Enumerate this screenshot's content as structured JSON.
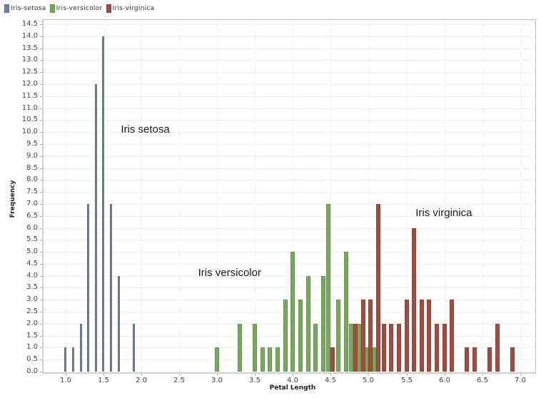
{
  "chart_data": {
    "type": "bar",
    "title": "",
    "xlabel": "Petal Length",
    "ylabel": "Frequency",
    "xlim": [
      0.7,
      7.2
    ],
    "ylim": [
      0,
      14.68
    ],
    "grid": true,
    "legend_position": "top-left",
    "x_ticks": [
      "1.0",
      "1.5",
      "2.0",
      "2.5",
      "3.0",
      "3.5",
      "4.0",
      "4.5",
      "5.0",
      "5.5",
      "6.0",
      "6.5",
      "7.0"
    ],
    "y_ticks": [
      "0.0",
      "0.5",
      "1.0",
      "1.5",
      "2.0",
      "2.5",
      "3.0",
      "3.5",
      "4.0",
      "4.5",
      "5.0",
      "5.5",
      "6.0",
      "6.5",
      "7.0",
      "7.5",
      "8.0",
      "8.5",
      "9.0",
      "9.5",
      "10.0",
      "10.5",
      "11.0",
      "11.5",
      "12.0",
      "12.5",
      "13.0",
      "13.5",
      "14.0",
      "14.5"
    ],
    "series": [
      {
        "name": "Iris-setosa",
        "color": "#6f82a2",
        "points": [
          {
            "x": 1.0,
            "y": 1
          },
          {
            "x": 1.1,
            "y": 1
          },
          {
            "x": 1.2,
            "y": 2
          },
          {
            "x": 1.3,
            "y": 7
          },
          {
            "x": 1.4,
            "y": 12
          },
          {
            "x": 1.5,
            "y": 14
          },
          {
            "x": 1.6,
            "y": 7
          },
          {
            "x": 1.7,
            "y": 4
          },
          {
            "x": 1.9,
            "y": 2
          }
        ]
      },
      {
        "name": "Iris-versicolor",
        "color": "#77a95a",
        "points": [
          {
            "x": 3.0,
            "y": 1
          },
          {
            "x": 3.3,
            "y": 2
          },
          {
            "x": 3.5,
            "y": 2
          },
          {
            "x": 3.6,
            "y": 1
          },
          {
            "x": 3.7,
            "y": 1
          },
          {
            "x": 3.8,
            "y": 1
          },
          {
            "x": 3.9,
            "y": 3
          },
          {
            "x": 4.0,
            "y": 5
          },
          {
            "x": 4.1,
            "y": 3
          },
          {
            "x": 4.2,
            "y": 4
          },
          {
            "x": 4.3,
            "y": 2
          },
          {
            "x": 4.4,
            "y": 4
          },
          {
            "x": 4.5,
            "y": 7
          },
          {
            "x": 4.6,
            "y": 3
          },
          {
            "x": 4.7,
            "y": 5
          },
          {
            "x": 4.8,
            "y": 2
          },
          {
            "x": 4.9,
            "y": 2
          },
          {
            "x": 5.0,
            "y": 1
          },
          {
            "x": 5.1,
            "y": 1
          }
        ]
      },
      {
        "name": "Iris-virginica",
        "color": "#a54a3e",
        "points": [
          {
            "x": 4.5,
            "y": 1
          },
          {
            "x": 4.8,
            "y": 2
          },
          {
            "x": 4.9,
            "y": 3
          },
          {
            "x": 5.0,
            "y": 3
          },
          {
            "x": 5.1,
            "y": 7
          },
          {
            "x": 5.2,
            "y": 2
          },
          {
            "x": 5.3,
            "y": 2
          },
          {
            "x": 5.4,
            "y": 2
          },
          {
            "x": 5.5,
            "y": 3
          },
          {
            "x": 5.6,
            "y": 6
          },
          {
            "x": 5.7,
            "y": 3
          },
          {
            "x": 5.8,
            "y": 3
          },
          {
            "x": 5.9,
            "y": 2
          },
          {
            "x": 6.0,
            "y": 2
          },
          {
            "x": 6.1,
            "y": 3
          },
          {
            "x": 6.3,
            "y": 1
          },
          {
            "x": 6.4,
            "y": 1
          },
          {
            "x": 6.6,
            "y": 1
          },
          {
            "x": 6.7,
            "y": 2
          },
          {
            "x": 6.9,
            "y": 1
          }
        ]
      }
    ],
    "annotations": [
      {
        "text": "Iris setosa",
        "x": 1.73,
        "y": 10.1
      },
      {
        "text": "Iris versicolor",
        "x": 2.75,
        "y": 4.1
      },
      {
        "text": "Iris virginica",
        "x": 5.62,
        "y": 6.6
      }
    ]
  }
}
